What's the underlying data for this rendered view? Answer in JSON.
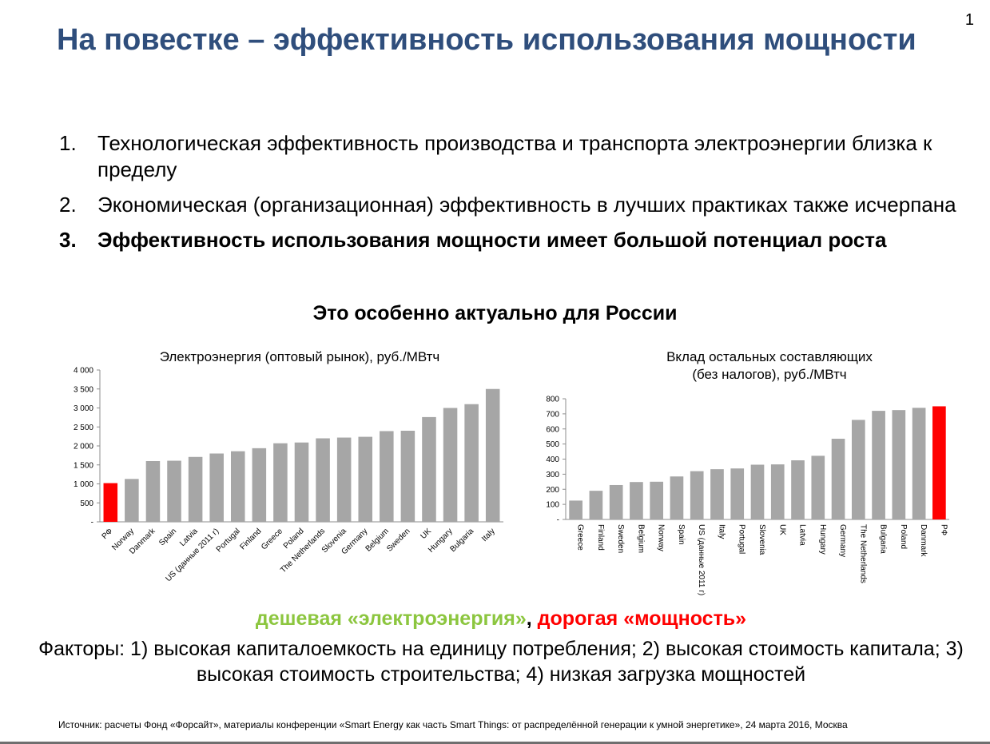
{
  "page_number": "1",
  "title": "На повестке – эффективность использования мощности",
  "list": [
    {
      "num": "1.",
      "text": "Технологическая эффективность производства и транспорта электроэнергии близка к пределу"
    },
    {
      "num": "2.",
      "text": "Экономическая (организационная) эффективность в лучших практиках также исчерпана"
    },
    {
      "num": "3.",
      "text": "Эффективность использования мощности имеет большой потенциал роста"
    }
  ],
  "subtitle": "Это особенно актуально для России",
  "tagline": {
    "cheap": "дешевая «электроэнергия»",
    "sep": ",",
    "expensive": "дорогая «мощность»"
  },
  "factors": "Факторы: 1) высокая капиталоемкость на единицу потребления; 2) высокая стоимость капитала; 3) высокая стоимость строительства; 4) низкая загрузка мощностей",
  "source": "Источник: расчеты Фонд «Форсайт», материалы конференции «Smart Energy как часть Smart Things: от распределённой генерации к умной энергетике», 24 марта 2016, Москва",
  "colors": {
    "title": "#2f4e7c",
    "bar": "#a6a6a6",
    "highlight": "#ff0000",
    "cheap": "#8cc63f",
    "expensive": "#ff0000"
  },
  "chart_data": [
    {
      "type": "bar",
      "title": "Электроэнергия (оптовый рынок), руб./МВтч",
      "categories": [
        "РФ",
        "Norway",
        "Danmark",
        "Spain",
        "Latvia",
        "US (данные 2011 г)",
        "Portugal",
        "Finland",
        "Greece",
        "Poland",
        "The Netherlands",
        "Slovenia",
        "Germany",
        "Belgium",
        "Sweden",
        "UK",
        "Hungary",
        "Bulgaria",
        "Italy"
      ],
      "values": [
        1020,
        1130,
        1600,
        1610,
        1710,
        1800,
        1860,
        1940,
        2070,
        2090,
        2200,
        2220,
        2240,
        2390,
        2400,
        2760,
        3000,
        3100,
        3500
      ],
      "highlight": "РФ",
      "ylim": [
        0,
        4000
      ],
      "yticks": [
        "-",
        "500",
        "1 000",
        "1 500",
        "2 000",
        "2 500",
        "3 000",
        "3 500",
        "4 000"
      ],
      "xlabel": "",
      "ylabel": "",
      "grid": false
    },
    {
      "type": "bar",
      "title": "Вклад остальных составляющих (без налогов), руб./МВтч",
      "categories": [
        "Greece",
        "Finland",
        "Sweden",
        "Belgium",
        "Norway",
        "Spain",
        "US (данные 2011 г)",
        "Italy",
        "Portugal",
        "Slovenia",
        "UK",
        "Latvia",
        "Hungary",
        "Germany",
        "The Netherlands",
        "Bulgaria",
        "Poland",
        "Danmark",
        "РФ"
      ],
      "values": [
        125,
        190,
        228,
        248,
        250,
        285,
        320,
        333,
        338,
        363,
        365,
        392,
        422,
        535,
        660,
        720,
        725,
        740,
        750
      ],
      "highlight": "РФ",
      "ylim": [
        0,
        800
      ],
      "yticks": [
        "-",
        "100",
        "200",
        "300",
        "400",
        "500",
        "600",
        "700",
        "800"
      ],
      "xlabel": "",
      "ylabel": "",
      "grid": false
    }
  ]
}
